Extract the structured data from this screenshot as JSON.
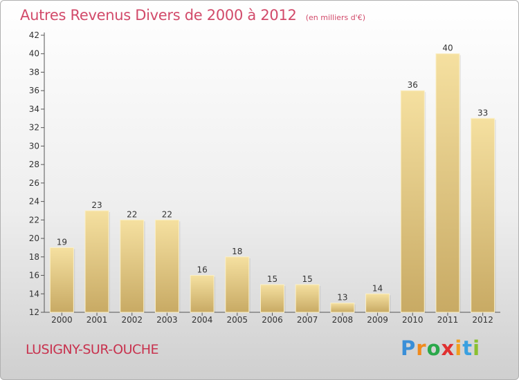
{
  "chart_data": {
    "type": "bar",
    "title": "Autres Revenus Divers de 2000 à 2012",
    "subtitle": "(en milliers d'€)",
    "categories": [
      "2000",
      "2001",
      "2002",
      "2003",
      "2004",
      "2005",
      "2006",
      "2007",
      "2008",
      "2009",
      "2010",
      "2011",
      "2012"
    ],
    "values": [
      19,
      23,
      22,
      22,
      16,
      18,
      15,
      15,
      13,
      14,
      36,
      40,
      33
    ],
    "ylim": [
      12,
      42
    ],
    "yticks": [
      12,
      14,
      16,
      18,
      20,
      22,
      24,
      26,
      28,
      30,
      32,
      34,
      36,
      38,
      40,
      42
    ],
    "grid": false,
    "bar_color_light": "#f5e0a0",
    "bar_color_dark": "#c8aa64"
  },
  "footer": {
    "town": "LUSIGNY-SUR-OUCHE",
    "logo_letters": [
      "P",
      "r",
      "o",
      "x",
      "i",
      "t",
      "i"
    ],
    "logo_colors": [
      "#3a8fd8",
      "#f08a1c",
      "#2aa84a",
      "#e03030",
      "#f0a020",
      "#3aa0e0",
      "#8ac030"
    ]
  }
}
